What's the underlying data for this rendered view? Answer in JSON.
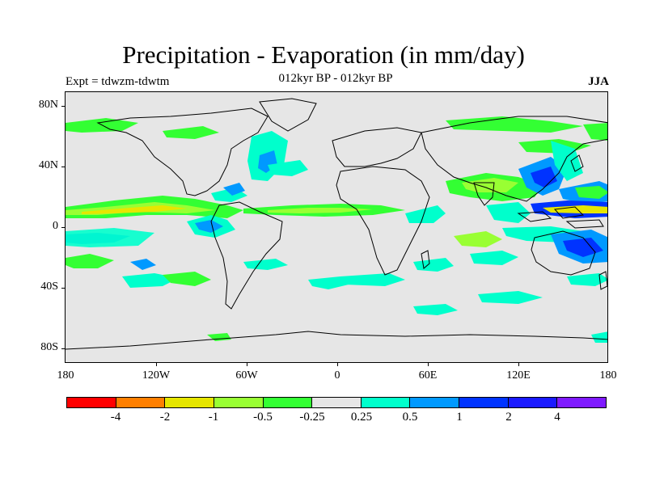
{
  "title": "Precipitation - Evaporation (in mm/day)",
  "subtitle": "012kyr BP - 012kyr BP",
  "left_label": "Expt = tdwzm-tdwtm",
  "right_label": "JJA",
  "lat_labels": [
    "80N",
    "40N",
    "0",
    "40S",
    "80S"
  ],
  "lon_labels": [
    "180",
    "120W",
    "60W",
    "0",
    "60E",
    "120E",
    "180"
  ],
  "colorbar": {
    "colors": [
      "#ff0000",
      "#ff7f00",
      "#e6e600",
      "#99ff33",
      "#33ff33",
      "#e6e6e6",
      "#00ffcc",
      "#0099ff",
      "#0033ff",
      "#1a1aff",
      "#7f1aff"
    ],
    "labels": [
      "-4",
      "-2",
      "-1",
      "-0.5",
      "-0.25",
      "0.25",
      "0.5",
      "1",
      "2",
      "4"
    ]
  },
  "palette": {
    "background": "#e6e6e6",
    "coast": "#000000"
  }
}
